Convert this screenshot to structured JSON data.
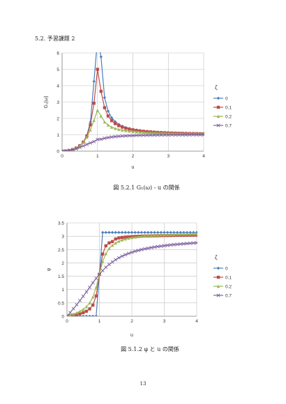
{
  "section_title": "5.2. 予習課題 2",
  "page_number": "13",
  "colors": {
    "zeta_0": "#4a7ebb",
    "zeta_01": "#be4b48",
    "zeta_02": "#98b954",
    "zeta_07": "#7d60a0"
  },
  "chart_data": [
    {
      "type": "line",
      "caption": "図 5.2.1 G₁(ω) - u の関係",
      "xlabel": "u",
      "ylabel": "G₁(ω)",
      "xlim": [
        0,
        4
      ],
      "ylim": [
        0,
        6
      ],
      "x_ticks": [
        "0",
        "1",
        "2",
        "3",
        "4"
      ],
      "y_ticks": [
        "0",
        "1",
        "2",
        "3",
        "4",
        "5",
        "6"
      ],
      "grid": true,
      "legend_title": "ζ",
      "legend_position": "right",
      "series": [
        {
          "name": "0",
          "marker": "diamond",
          "color_key": "zeta_0"
        },
        {
          "name": "0.1",
          "marker": "square",
          "color_key": "zeta_01"
        },
        {
          "name": "0.2",
          "marker": "triangle",
          "color_key": "zeta_02"
        },
        {
          "name": "0.7",
          "marker": "cross",
          "color_key": "zeta_07"
        }
      ],
      "x": [
        0.0,
        0.1,
        0.2,
        0.3,
        0.4,
        0.5,
        0.6,
        0.7,
        0.8,
        0.9,
        1.0,
        1.1,
        1.2,
        1.3,
        1.4,
        1.5,
        1.6,
        1.7,
        1.8,
        1.9,
        2.0,
        2.1,
        2.2,
        2.3,
        2.4,
        2.5,
        2.6,
        2.7,
        2.8,
        2.9,
        3.0,
        3.1,
        3.2,
        3.3,
        3.4,
        3.5,
        3.6,
        3.7,
        3.8,
        3.9,
        4.0
      ],
      "values": [
        [
          0.0,
          0.01,
          0.042,
          0.099,
          0.19,
          0.333,
          0.563,
          0.961,
          1.778,
          4.263,
          null,
          5.762,
          3.273,
          2.449,
          2.042,
          1.8,
          1.641,
          1.529,
          1.446,
          1.383,
          1.333,
          1.293,
          1.261,
          1.233,
          1.21,
          1.19,
          1.173,
          1.159,
          1.146,
          1.135,
          1.125,
          1.116,
          1.108,
          1.101,
          1.095,
          1.089,
          1.084,
          1.079,
          1.074,
          1.071,
          1.067
        ],
        [
          0.0,
          0.01,
          0.042,
          0.098,
          0.189,
          0.331,
          0.555,
          0.928,
          1.606,
          2.93,
          5.0,
          3.655,
          2.656,
          2.148,
          1.862,
          1.681,
          1.557,
          1.466,
          1.398,
          1.344,
          1.301,
          1.266,
          1.237,
          1.213,
          1.192,
          1.175,
          1.16,
          1.146,
          1.134,
          1.124,
          1.115,
          1.107,
          1.1,
          1.093,
          1.087,
          1.082,
          1.077,
          1.073,
          1.069,
          1.065,
          1.062
        ],
        [
          0.0,
          0.01,
          0.042,
          0.097,
          0.186,
          0.324,
          0.534,
          0.854,
          1.3,
          1.879,
          2.5,
          2.149,
          1.786,
          1.597,
          1.468,
          1.391,
          1.333,
          1.291,
          1.256,
          1.226,
          1.2,
          1.181,
          1.164,
          1.151,
          1.139,
          1.129,
          1.12,
          1.112,
          1.105,
          1.099,
          1.094,
          1.089,
          1.084,
          1.08,
          1.076,
          1.073,
          1.07,
          1.067,
          1.064,
          1.062,
          1.059
        ],
        [
          0.0,
          0.01,
          0.04,
          0.088,
          0.152,
          0.229,
          0.319,
          0.412,
          0.503,
          0.584,
          0.714,
          0.727,
          0.788,
          0.829,
          0.863,
          0.888,
          0.908,
          0.924,
          0.936,
          0.946,
          0.954,
          0.961,
          0.967,
          0.972,
          0.976,
          0.979,
          0.982,
          0.985,
          0.987,
          0.989,
          0.991,
          0.993,
          0.994,
          0.995,
          0.996,
          0.997,
          0.998,
          0.999,
          1.0,
          1.0,
          1.0
        ]
      ]
    },
    {
      "type": "line",
      "caption": "図 5.1.2 φ と u の関係",
      "xlabel": "u",
      "ylabel": "φ",
      "xlim": [
        0,
        4
      ],
      "ylim": [
        0,
        3.5
      ],
      "x_ticks": [
        "0",
        "1",
        "2",
        "3",
        "4"
      ],
      "y_ticks": [
        "0",
        "0.5",
        "1",
        "1.5",
        "2",
        "2.5",
        "3",
        "3.5"
      ],
      "grid": true,
      "legend_title": "ζ",
      "legend_position": "right",
      "series": [
        {
          "name": "0",
          "marker": "diamond",
          "color_key": "zeta_0"
        },
        {
          "name": "0.1",
          "marker": "square",
          "color_key": "zeta_01"
        },
        {
          "name": "0.2",
          "marker": "triangle",
          "color_key": "zeta_02"
        },
        {
          "name": "0.7",
          "marker": "cross",
          "color_key": "zeta_07"
        }
      ],
      "x": [
        0.0,
        0.1,
        0.2,
        0.3,
        0.4,
        0.5,
        0.6,
        0.7,
        0.8,
        0.9,
        1.0,
        1.1,
        1.2,
        1.3,
        1.4,
        1.5,
        1.6,
        1.7,
        1.8,
        1.9,
        2.0,
        2.1,
        2.2,
        2.3,
        2.4,
        2.5,
        2.6,
        2.7,
        2.8,
        2.9,
        3.0,
        3.1,
        3.2,
        3.3,
        3.4,
        3.5,
        3.6,
        3.7,
        3.8,
        3.9,
        4.0
      ],
      "values": [
        [
          0,
          0,
          0,
          0,
          0,
          0,
          0,
          0,
          0,
          0,
          1.571,
          3.142,
          3.142,
          3.142,
          3.142,
          3.142,
          3.142,
          3.142,
          3.142,
          3.142,
          3.142,
          3.142,
          3.142,
          3.142,
          3.142,
          3.142,
          3.142,
          3.142,
          3.142,
          3.142,
          3.142,
          3.142,
          3.142,
          3.142,
          3.142,
          3.142,
          3.142,
          3.142,
          3.142,
          3.142,
          3.142
        ],
        [
          0,
          0.02,
          0.042,
          0.066,
          0.095,
          0.133,
          0.188,
          0.276,
          0.418,
          0.759,
          1.571,
          2.333,
          2.642,
          2.75,
          2.8,
          2.897,
          2.934,
          2.954,
          2.968,
          2.978,
          2.985,
          2.993,
          2.997,
          3.002,
          3.006,
          3.009,
          3.013,
          3.016,
          3.019,
          3.022,
          3.024,
          3.026,
          3.028,
          3.03,
          3.032,
          3.034,
          3.035,
          3.037,
          3.038,
          3.04,
          3.041
        ],
        [
          0,
          0.04,
          0.083,
          0.132,
          0.189,
          0.261,
          0.359,
          0.5,
          0.724,
          1.085,
          1.571,
          2.053,
          2.346,
          2.54,
          2.662,
          2.749,
          2.812,
          2.861,
          2.897,
          2.926,
          2.95,
          2.97,
          2.985,
          2.999,
          3.011,
          3.021,
          3.03,
          3.037,
          3.044,
          3.05,
          3.056,
          3.061,
          3.065,
          3.069,
          3.073,
          3.076,
          3.079,
          3.082,
          3.085,
          3.087,
          3.089
        ],
        [
          0,
          0.141,
          0.285,
          0.432,
          0.588,
          0.75,
          0.912,
          1.085,
          1.257,
          1.422,
          1.571,
          1.711,
          1.837,
          1.943,
          2.034,
          2.118,
          2.19,
          2.253,
          2.307,
          2.355,
          2.397,
          2.435,
          2.469,
          2.499,
          2.526,
          2.551,
          2.573,
          2.594,
          2.612,
          2.629,
          2.645,
          2.659,
          2.673,
          2.685,
          2.697,
          2.707,
          2.717,
          2.727,
          2.736,
          2.744,
          2.752
        ]
      ]
    }
  ]
}
